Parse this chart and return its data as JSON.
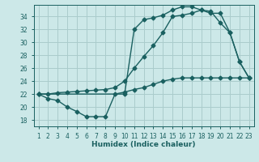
{
  "xlabel": "Humidex (Indice chaleur)",
  "bg_color": "#cce8e8",
  "grid_color": "#aacccc",
  "line_color": "#1a6060",
  "xlim": [
    0.5,
    23.5
  ],
  "ylim": [
    17,
    35.8
  ],
  "xticks": [
    1,
    2,
    3,
    4,
    5,
    6,
    7,
    8,
    9,
    10,
    11,
    12,
    13,
    14,
    15,
    16,
    17,
    18,
    19,
    20,
    21,
    22,
    23
  ],
  "yticks": [
    18,
    20,
    22,
    24,
    26,
    28,
    30,
    32,
    34
  ],
  "series1_x": [
    1,
    2,
    3,
    4,
    5,
    6,
    7,
    8,
    9,
    10,
    11,
    12,
    13,
    14,
    15,
    16,
    17,
    18,
    19,
    20,
    21,
    22,
    23
  ],
  "series1_y": [
    22,
    21.3,
    21.0,
    20.0,
    19.3,
    18.5,
    18.5,
    18.5,
    22.0,
    22.3,
    22.7,
    23.0,
    23.5,
    24.0,
    24.3,
    24.5,
    24.5,
    24.5,
    24.5,
    24.5,
    24.5,
    24.5,
    24.5
  ],
  "series2_x": [
    1,
    2,
    3,
    4,
    5,
    6,
    7,
    8,
    9,
    10,
    11,
    12,
    13,
    14,
    15,
    16,
    17,
    18,
    19,
    20,
    21,
    22,
    23
  ],
  "series2_y": [
    22,
    22,
    22.2,
    22.3,
    22.4,
    22.5,
    22.6,
    22.7,
    23.0,
    24.0,
    26.0,
    27.8,
    29.5,
    31.5,
    34.0,
    34.2,
    34.5,
    35.0,
    34.8,
    33.0,
    31.5,
    27.0,
    24.5
  ],
  "series3_x": [
    1,
    10,
    11,
    12,
    13,
    14,
    15,
    16,
    17,
    18,
    19,
    20,
    21,
    22,
    23
  ],
  "series3_y": [
    22,
    22,
    32.0,
    33.5,
    33.8,
    34.2,
    35.0,
    35.5,
    35.5,
    35.0,
    34.5,
    34.5,
    31.5,
    27.0,
    24.5
  ],
  "marker": "D",
  "marker_size": 2.5,
  "linewidth": 1.0
}
